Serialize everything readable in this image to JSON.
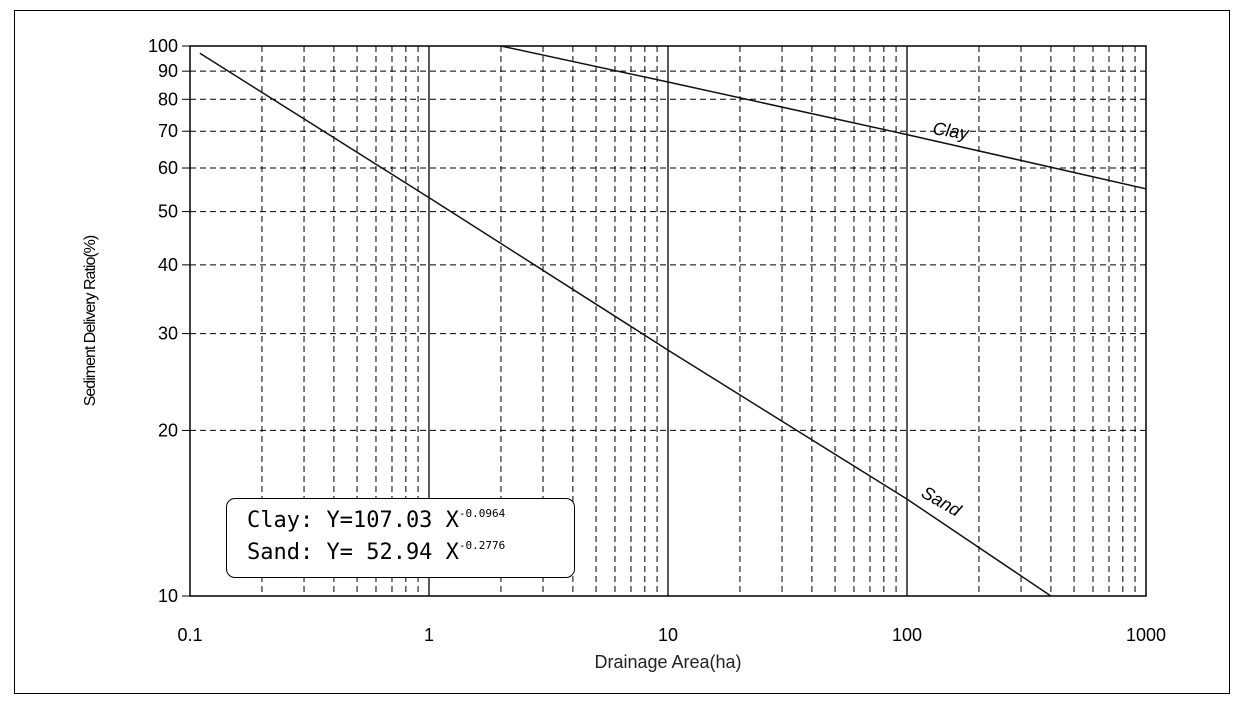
{
  "chart_data": {
    "type": "line",
    "xlabel": "Drainage Area(ha)",
    "ylabel": "Sediment Delivery Ratio(%)",
    "xscale": "log",
    "yscale": "log",
    "xlim": [
      0.1,
      1000
    ],
    "ylim": [
      10,
      100
    ],
    "x_ticks": [
      "0.1",
      "1",
      "10",
      "100",
      "1000"
    ],
    "y_ticks": [
      "10",
      "20",
      "30",
      "40",
      "50",
      "60",
      "70",
      "80",
      "90",
      "100"
    ],
    "grid": "dashed, major and minor",
    "series": [
      {
        "name": "Clay",
        "equation": {
          "coef": "107.03",
          "exp": "-0.0964"
        },
        "x": [
          2,
          10,
          100,
          1000
        ],
        "y": [
          100,
          86,
          69,
          55
        ]
      },
      {
        "name": "Sand",
        "equation": {
          "coef": "52.94",
          "exp": "-0.2776"
        },
        "x": [
          0.11,
          1,
          10,
          100,
          400
        ],
        "y": [
          97,
          53,
          28,
          15,
          10
        ]
      }
    ],
    "annotation": {
      "clay_prefix": "Clay: Y=107.03 X",
      "clay_exp": "-0.0964",
      "sand_prefix": "Sand: Y= 52.94 X",
      "sand_exp": "-0.2776"
    }
  }
}
